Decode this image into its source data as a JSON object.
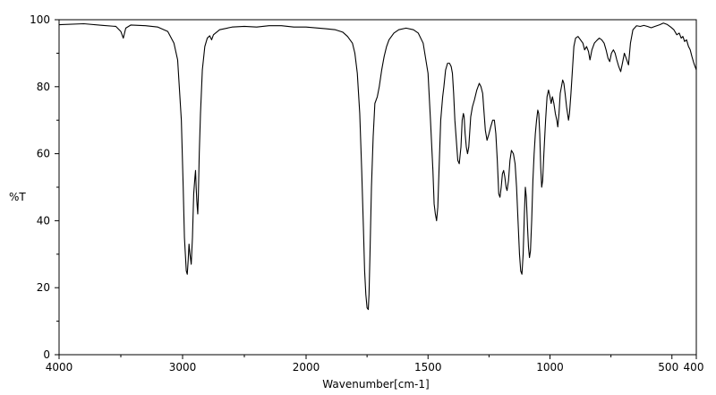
{
  "chart_data": {
    "type": "line",
    "title": "",
    "xlabel": "Wavenumber[cm-1]",
    "ylabel": "%T",
    "x_reversed": true,
    "x_axis_breaks": [
      {
        "from": 4000,
        "to": 2000,
        "note": "compressed region"
      },
      {
        "from": 2000,
        "to": 400,
        "note": "expanded region"
      }
    ],
    "xlim": [
      4000,
      400
    ],
    "ylim": [
      0,
      100
    ],
    "x_ticks": [
      {
        "value": 4000,
        "label": "4000"
      },
      {
        "value": 3000,
        "label": "3000"
      },
      {
        "value": 2000,
        "label": "2000"
      },
      {
        "value": 1500,
        "label": "1500"
      },
      {
        "value": 1000,
        "label": "1000"
      },
      {
        "value": 500,
        "label": "500"
      },
      {
        "value": 400,
        "label": "400"
      }
    ],
    "y_ticks": [
      {
        "value": 0,
        "label": "0"
      },
      {
        "value": 20,
        "label": "20"
      },
      {
        "value": 40,
        "label": "40"
      },
      {
        "value": 60,
        "label": "60"
      },
      {
        "value": 80,
        "label": "80"
      },
      {
        "value": 100,
        "label": "100"
      }
    ],
    "grid": false,
    "legend": "none",
    "series": [
      {
        "color": "#000000",
        "points": [
          [
            4000,
            98.5
          ],
          [
            3800,
            98.8
          ],
          [
            3650,
            98.3
          ],
          [
            3540,
            98.0
          ],
          [
            3500,
            96.5
          ],
          [
            3480,
            94.5
          ],
          [
            3460,
            97.5
          ],
          [
            3420,
            98.4
          ],
          [
            3300,
            98.2
          ],
          [
            3200,
            97.8
          ],
          [
            3120,
            96.5
          ],
          [
            3070,
            93
          ],
          [
            3040,
            88
          ],
          [
            3010,
            70
          ],
          [
            2995,
            50
          ],
          [
            2985,
            35
          ],
          [
            2970,
            25
          ],
          [
            2962,
            24
          ],
          [
            2955,
            28
          ],
          [
            2948,
            33
          ],
          [
            2940,
            30
          ],
          [
            2930,
            27
          ],
          [
            2920,
            35
          ],
          [
            2910,
            48
          ],
          [
            2900,
            53
          ],
          [
            2895,
            55
          ],
          [
            2890,
            50
          ],
          [
            2885,
            46
          ],
          [
            2877,
            42
          ],
          [
            2872,
            48
          ],
          [
            2865,
            60
          ],
          [
            2855,
            72
          ],
          [
            2840,
            85
          ],
          [
            2820,
            92
          ],
          [
            2800,
            94.5
          ],
          [
            2780,
            95.2
          ],
          [
            2765,
            94
          ],
          [
            2750,
            95.5
          ],
          [
            2700,
            97
          ],
          [
            2600,
            97.8
          ],
          [
            2500,
            98
          ],
          [
            2400,
            97.8
          ],
          [
            2300,
            98.2
          ],
          [
            2200,
            98.2
          ],
          [
            2100,
            97.8
          ],
          [
            2000,
            97.8
          ],
          [
            1920,
            97.3
          ],
          [
            1880,
            97
          ],
          [
            1850,
            96.3
          ],
          [
            1830,
            95
          ],
          [
            1810,
            93
          ],
          [
            1800,
            90
          ],
          [
            1790,
            84
          ],
          [
            1780,
            72
          ],
          [
            1772,
            55
          ],
          [
            1765,
            38
          ],
          [
            1760,
            25
          ],
          [
            1755,
            18
          ],
          [
            1750,
            14
          ],
          [
            1745,
            13.5
          ],
          [
            1742,
            18
          ],
          [
            1738,
            30
          ],
          [
            1732,
            50
          ],
          [
            1725,
            65
          ],
          [
            1718,
            75
          ],
          [
            1708,
            77
          ],
          [
            1700,
            80
          ],
          [
            1690,
            85
          ],
          [
            1680,
            89
          ],
          [
            1670,
            92
          ],
          [
            1660,
            94
          ],
          [
            1640,
            96
          ],
          [
            1620,
            97
          ],
          [
            1590,
            97.5
          ],
          [
            1560,
            97
          ],
          [
            1540,
            96
          ],
          [
            1520,
            93
          ],
          [
            1500,
            84
          ],
          [
            1490,
            70
          ],
          [
            1480,
            55
          ],
          [
            1475,
            45
          ],
          [
            1470,
            42
          ],
          [
            1465,
            40
          ],
          [
            1460,
            44
          ],
          [
            1455,
            55
          ],
          [
            1448,
            70
          ],
          [
            1440,
            77
          ],
          [
            1435,
            80
          ],
          [
            1428,
            85
          ],
          [
            1420,
            87
          ],
          [
            1412,
            87
          ],
          [
            1405,
            86
          ],
          [
            1400,
            84
          ],
          [
            1395,
            78
          ],
          [
            1390,
            70
          ],
          [
            1385,
            65
          ],
          [
            1378,
            58
          ],
          [
            1372,
            57
          ],
          [
            1365,
            62
          ],
          [
            1360,
            70
          ],
          [
            1355,
            72
          ],
          [
            1352,
            71
          ],
          [
            1348,
            66
          ],
          [
            1343,
            62
          ],
          [
            1338,
            60
          ],
          [
            1333,
            62
          ],
          [
            1325,
            71
          ],
          [
            1318,
            74
          ],
          [
            1310,
            76
          ],
          [
            1300,
            79
          ],
          [
            1290,
            81
          ],
          [
            1283,
            80
          ],
          [
            1276,
            78
          ],
          [
            1270,
            72
          ],
          [
            1265,
            67
          ],
          [
            1258,
            64
          ],
          [
            1250,
            66
          ],
          [
            1243,
            68
          ],
          [
            1235,
            70
          ],
          [
            1228,
            70
          ],
          [
            1222,
            66
          ],
          [
            1216,
            58
          ],
          [
            1210,
            48
          ],
          [
            1205,
            47
          ],
          [
            1200,
            50
          ],
          [
            1195,
            54
          ],
          [
            1190,
            55
          ],
          [
            1185,
            53
          ],
          [
            1180,
            50
          ],
          [
            1176,
            49
          ],
          [
            1170,
            52
          ],
          [
            1164,
            58
          ],
          [
            1158,
            61
          ],
          [
            1150,
            60
          ],
          [
            1143,
            57
          ],
          [
            1137,
            50
          ],
          [
            1131,
            40
          ],
          [
            1125,
            30
          ],
          [
            1120,
            25
          ],
          [
            1115,
            24
          ],
          [
            1110,
            30
          ],
          [
            1105,
            42
          ],
          [
            1101,
            50
          ],
          [
            1097,
            47
          ],
          [
            1092,
            38
          ],
          [
            1088,
            32
          ],
          [
            1084,
            29
          ],
          [
            1080,
            31
          ],
          [
            1075,
            40
          ],
          [
            1070,
            52
          ],
          [
            1065,
            60
          ],
          [
            1060,
            66
          ],
          [
            1055,
            70
          ],
          [
            1050,
            73
          ],
          [
            1046,
            72
          ],
          [
            1042,
            66
          ],
          [
            1038,
            56
          ],
          [
            1034,
            50
          ],
          [
            1030,
            52
          ],
          [
            1025,
            60
          ],
          [
            1018,
            70
          ],
          [
            1012,
            77
          ],
          [
            1006,
            79
          ],
          [
            1000,
            77
          ],
          [
            995,
            75
          ],
          [
            990,
            77
          ],
          [
            984,
            75
          ],
          [
            978,
            72
          ],
          [
            972,
            70
          ],
          [
            968,
            68
          ],
          [
            963,
            72
          ],
          [
            958,
            78
          ],
          [
            953,
            80
          ],
          [
            948,
            82
          ],
          [
            943,
            81
          ],
          [
            938,
            78
          ],
          [
            932,
            74
          ],
          [
            928,
            72
          ],
          [
            924,
            70
          ],
          [
            920,
            72
          ],
          [
            914,
            78
          ],
          [
            908,
            85
          ],
          [
            902,
            92
          ],
          [
            895,
            94.5
          ],
          [
            885,
            95
          ],
          [
            875,
            94
          ],
          [
            865,
            93
          ],
          [
            858,
            91
          ],
          [
            850,
            92
          ],
          [
            842,
            90.5
          ],
          [
            836,
            88
          ],
          [
            828,
            91
          ],
          [
            818,
            93
          ],
          [
            808,
            93.8
          ],
          [
            798,
            94.5
          ],
          [
            788,
            94
          ],
          [
            778,
            93
          ],
          [
            770,
            91
          ],
          [
            762,
            88.5
          ],
          [
            755,
            87.5
          ],
          [
            748,
            90
          ],
          [
            740,
            91
          ],
          [
            733,
            90
          ],
          [
            726,
            88
          ],
          [
            718,
            86
          ],
          [
            710,
            84.5
          ],
          [
            703,
            87
          ],
          [
            695,
            90
          ],
          [
            685,
            88
          ],
          [
            678,
            86.5
          ],
          [
            670,
            93
          ],
          [
            660,
            97
          ],
          [
            645,
            98.2
          ],
          [
            630,
            98
          ],
          [
            615,
            98.3
          ],
          [
            600,
            98
          ],
          [
            585,
            97.6
          ],
          [
            570,
            98
          ],
          [
            550,
            98.5
          ],
          [
            535,
            99
          ],
          [
            520,
            98.6
          ],
          [
            505,
            97.8
          ],
          [
            492,
            97
          ],
          [
            480,
            95.5
          ],
          [
            470,
            96
          ],
          [
            462,
            94.5
          ],
          [
            455,
            95
          ],
          [
            448,
            93.5
          ],
          [
            440,
            94
          ],
          [
            432,
            92
          ],
          [
            425,
            91
          ],
          [
            418,
            89
          ],
          [
            410,
            87
          ],
          [
            405,
            86
          ],
          [
            400,
            85
          ]
        ]
      }
    ]
  }
}
